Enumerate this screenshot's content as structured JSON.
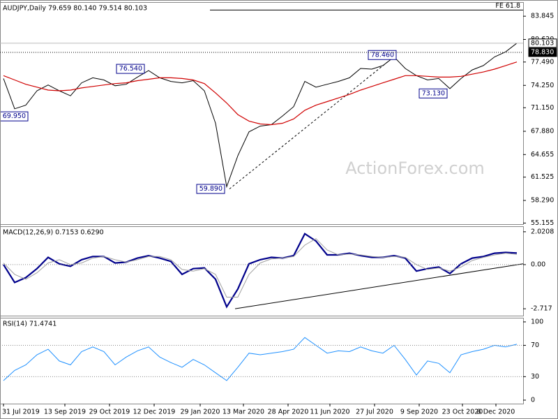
{
  "chart_data": [
    {
      "type": "line",
      "title": "AUDJPY,Daily 79.659 80.140 79.514 80.103",
      "watermark": "ActionForex.com",
      "x": [
        0,
        8,
        16,
        24,
        32,
        40,
        48,
        56,
        64,
        72,
        80,
        88,
        96,
        104,
        112,
        120,
        128,
        136,
        144,
        152,
        160,
        168,
        176,
        184,
        192,
        200,
        208,
        216,
        224,
        232,
        240,
        248,
        256,
        264,
        272,
        280,
        288,
        296,
        304,
        312,
        320,
        328,
        336,
        344,
        352,
        360,
        368
      ],
      "xlim": [
        -2.5,
        372.5
      ],
      "ylim": [
        55.0,
        85.8
      ],
      "yticks": [
        {
          "value": 55.155,
          "label": "55.155"
        },
        {
          "value": 58.29,
          "label": "58.290"
        },
        {
          "value": 61.525,
          "label": "61.525"
        },
        {
          "value": 64.655,
          "label": "64.655"
        },
        {
          "value": 67.88,
          "label": "67.880"
        },
        {
          "value": 71.15,
          "label": "71.150"
        },
        {
          "value": 74.25,
          "label": "74.250"
        },
        {
          "value": 77.49,
          "label": "77.490"
        },
        {
          "value": 80.62,
          "label": "80.620"
        },
        {
          "value": 83.845,
          "label": "83.845"
        }
      ],
      "series": [
        {
          "color": "#000000",
          "width": 1,
          "values": [
            75.2,
            71.0,
            71.5,
            73.5,
            74.3,
            73.5,
            72.8,
            74.6,
            75.3,
            75.0,
            74.2,
            74.4,
            75.4,
            76.3,
            75.3,
            74.8,
            74.6,
            74.9,
            73.5,
            69.0,
            60.2,
            64.5,
            67.8,
            68.6,
            68.8,
            70.0,
            71.3,
            74.8,
            74.0,
            74.4,
            74.8,
            75.3,
            76.6,
            76.5,
            77.0,
            78.2,
            76.6,
            75.6,
            75.0,
            75.2,
            73.8,
            75.2,
            76.4,
            77.0,
            78.2,
            78.9,
            80.103
          ]
        },
        {
          "color": "#d00000",
          "width": 1.2,
          "values": [
            75.6,
            75.0,
            74.4,
            74.0,
            73.6,
            73.5,
            73.6,
            73.9,
            74.1,
            74.3,
            74.5,
            74.6,
            74.9,
            75.1,
            75.3,
            75.3,
            75.2,
            75.0,
            74.5,
            73.2,
            71.8,
            70.2,
            69.3,
            68.9,
            68.8,
            69.0,
            69.6,
            70.8,
            71.5,
            72.0,
            72.5,
            73.0,
            73.6,
            74.1,
            74.6,
            75.1,
            75.6,
            75.6,
            75.5,
            75.4,
            75.4,
            75.5,
            75.8,
            76.1,
            76.5,
            77.0,
            77.5
          ]
        }
      ],
      "levels": [
        {
          "value": 80.103,
          "label": "80.103",
          "style": "solid"
        },
        {
          "value": 78.83,
          "label": "78.830",
          "style": "dotted"
        }
      ],
      "fe_level": {
        "value": 84.7,
        "label": "FE 61.8",
        "from": 148
      },
      "annotations": [
        {
          "label": "76.540",
          "value": 76.54,
          "x": 101
        },
        {
          "label": "78.460",
          "value": 78.46,
          "x": 281.5
        },
        {
          "label": "73.130",
          "value": 73.13,
          "x": 318
        },
        {
          "label": "59.890",
          "value": 59.89,
          "x": 158.5
        },
        {
          "label": "69.950",
          "value": 69.95,
          "x": 17.5
        }
      ],
      "trendline": {
        "x": [
          162,
          281.5
        ],
        "values": [
          59.89,
          78.46
        ],
        "style": "dashed"
      }
    },
    {
      "type": "line",
      "title": "MACD(12,26,9) 0.7153 0.6290",
      "ylim": [
        -3.14,
        2.36
      ],
      "yticks": [
        -2.717,
        {
          "value": 0,
          "label": "0.00"
        },
        2.0208
      ],
      "guides": [
        0
      ],
      "series": [
        {
          "color": "#00008b",
          "width": 2.2,
          "values": [
            0.0,
            -1.1,
            -0.8,
            -0.25,
            0.45,
            0.05,
            -0.1,
            0.3,
            0.5,
            0.5,
            0.1,
            0.15,
            0.4,
            0.55,
            0.4,
            0.2,
            -0.6,
            -0.25,
            -0.2,
            -0.9,
            -2.6,
            -1.5,
            0.05,
            0.3,
            0.45,
            0.4,
            0.55,
            1.9,
            1.45,
            0.6,
            0.6,
            0.7,
            0.55,
            0.45,
            0.45,
            0.55,
            0.4,
            -0.4,
            -0.25,
            -0.15,
            -0.55,
            0.05,
            0.4,
            0.5,
            0.7,
            0.75,
            0.7153
          ]
        },
        {
          "color": "#a0a0a0",
          "width": 1,
          "values": [
            0.1,
            -0.6,
            -0.9,
            -0.5,
            0.1,
            0.3,
            0.0,
            0.1,
            0.4,
            0.5,
            0.3,
            0.15,
            0.3,
            0.5,
            0.5,
            0.3,
            -0.3,
            -0.4,
            -0.25,
            -0.6,
            -2.0,
            -2.0,
            -0.6,
            0.1,
            0.35,
            0.4,
            0.5,
            1.2,
            1.6,
            0.9,
            0.6,
            0.65,
            0.6,
            0.5,
            0.45,
            0.5,
            0.45,
            0.0,
            -0.3,
            -0.2,
            -0.4,
            -0.15,
            0.25,
            0.45,
            0.6,
            0.7,
            0.629
          ]
        }
      ],
      "trendline": {
        "x": [
          166,
          372.5
        ],
        "values": [
          -2.717,
          0.05
        ],
        "style": "solid"
      }
    },
    {
      "type": "line",
      "title": "RSI(14) 71.4741",
      "ylim": [
        -4.5,
        105.3
      ],
      "yticks": [
        0,
        30,
        70,
        100
      ],
      "guides": [
        30,
        70
      ],
      "xticks": [
        {
          "value": 0,
          "label": "31 Jul 2019"
        },
        {
          "value": 44,
          "label": "13 Sep 2019"
        },
        {
          "value": 76,
          "label": "29 Oct 2019"
        },
        {
          "value": 108,
          "label": "12 Dec 2019"
        },
        {
          "value": 141,
          "label": "29 Jan 2020"
        },
        {
          "value": 172,
          "label": "13 Mar 2020"
        },
        {
          "value": 204,
          "label": "28 Apr 2020"
        },
        {
          "value": 234,
          "label": "11 Jun 2020"
        },
        {
          "value": 266,
          "label": "27 Jul 2020"
        },
        {
          "value": 298,
          "label": "9 Sep 2020"
        },
        {
          "value": 329,
          "label": "23 Oct 2020"
        },
        {
          "value": 353,
          "label": "8 Dec 2020"
        }
      ],
      "series": [
        {
          "color": "#1e90ff",
          "width": 1,
          "values": [
            25,
            38,
            45,
            58,
            65,
            50,
            45,
            62,
            68,
            62,
            45,
            55,
            63,
            68,
            55,
            48,
            42,
            52,
            45,
            35,
            25,
            42,
            60,
            58,
            60,
            62,
            65,
            80,
            70,
            60,
            63,
            62,
            68,
            63,
            60,
            70,
            52,
            32,
            50,
            47,
            35,
            58,
            62,
            65,
            70,
            68,
            71.4741
          ]
        }
      ]
    }
  ]
}
